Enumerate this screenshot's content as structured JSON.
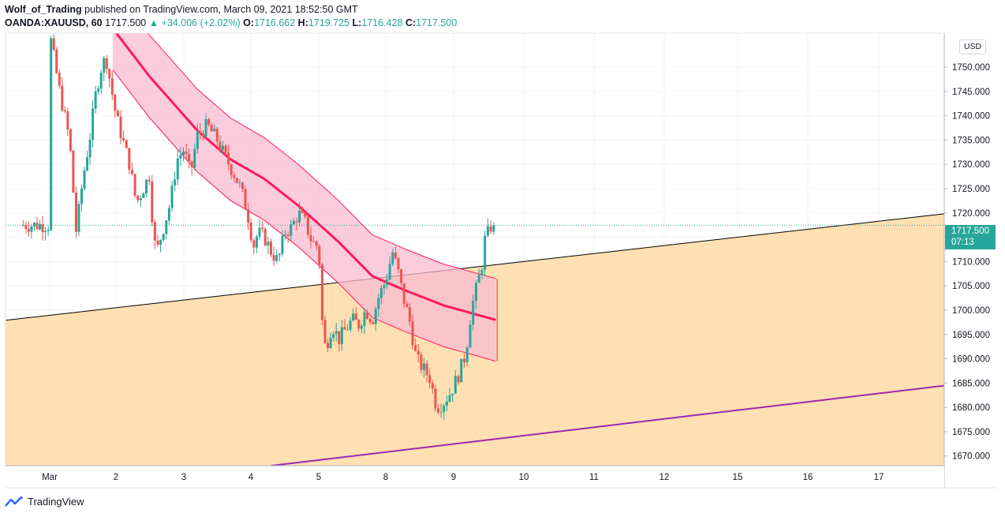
{
  "header": {
    "author": "Wolf_of_Trading",
    "published": "published on TradingView.com, March 09, 2021 18:52:50 GMT"
  },
  "legend": {
    "symbol": "OANDA:XAUUSD, 60",
    "last": "1717.500",
    "change": "▲ +34.006 (+2.02%)",
    "o_label": "O:",
    "o_value": "1716.662",
    "h_label": "H:",
    "h_value": "1719.725",
    "l_label": "L:",
    "l_value": "1716.428",
    "c_label": "C:",
    "c_value": "1717.500"
  },
  "currency": "USD",
  "price_tag": {
    "price": "1717.500",
    "countdown": "07:13"
  },
  "footer": {
    "brand": "TradingView"
  },
  "colors": {
    "up": "#26a69a",
    "down": "#ef5350",
    "channel_fill": "#ffe0b2",
    "band_fill": "#f8bbd0",
    "band_line": "#ff1a5e",
    "lower_line": "#9c27b0",
    "trend_line": "#000000"
  },
  "chart_data": {
    "type": "candlestick",
    "symbol": "OANDA:XAUUSD",
    "interval": "60",
    "x_ticks": [
      "Mar",
      "2",
      "3",
      "4",
      "5",
      "8",
      "9",
      "10",
      "11",
      "12",
      "15",
      "16",
      "17"
    ],
    "y_ticks": [
      "1670.000",
      "1675.000",
      "1680.000",
      "1685.000",
      "1690.000",
      "1695.000",
      "1700.000",
      "1705.000",
      "1710.000",
      "1715.000",
      "1720.000",
      "1725.000",
      "1730.000",
      "1735.000",
      "1740.000",
      "1745.000",
      "1750.000"
    ],
    "ylim": [
      1668,
      1757
    ],
    "last_price": 1717.5,
    "price_path": [
      [
        0,
        1757
      ],
      [
        0.15,
        1745
      ],
      [
        0.3,
        1735
      ],
      [
        0.4,
        1716
      ],
      [
        0.5,
        1727
      ],
      [
        0.6,
        1735
      ],
      [
        0.7,
        1745
      ],
      [
        0.78,
        1750
      ],
      [
        0.85,
        1752
      ],
      [
        0.95,
        1744
      ],
      [
        1.0,
        1740
      ],
      [
        1.1,
        1735
      ],
      [
        1.2,
        1730
      ],
      [
        1.3,
        1722
      ],
      [
        1.4,
        1725
      ],
      [
        1.5,
        1728
      ],
      [
        1.55,
        1715
      ],
      [
        1.6,
        1712
      ],
      [
        1.7,
        1717
      ],
      [
        1.8,
        1722
      ],
      [
        1.9,
        1731
      ],
      [
        2.0,
        1733
      ],
      [
        2.1,
        1728
      ],
      [
        2.2,
        1736
      ],
      [
        2.35,
        1738
      ],
      [
        2.5,
        1735
      ],
      [
        2.6,
        1732
      ],
      [
        2.75,
        1728
      ],
      [
        2.85,
        1725
      ],
      [
        2.95,
        1720
      ],
      [
        3.0,
        1716
      ],
      [
        3.05,
        1713
      ],
      [
        3.1,
        1716
      ],
      [
        3.2,
        1715
      ],
      [
        3.3,
        1712
      ],
      [
        3.4,
        1710
      ],
      [
        3.5,
        1716
      ],
      [
        3.6,
        1717
      ],
      [
        3.7,
        1720
      ],
      [
        3.8,
        1718
      ],
      [
        3.9,
        1714
      ],
      [
        4.0,
        1713
      ],
      [
        4.05,
        1698
      ],
      [
        4.1,
        1692
      ],
      [
        4.2,
        1697
      ],
      [
        4.3,
        1694
      ],
      [
        4.4,
        1696
      ],
      [
        4.5,
        1698
      ],
      [
        4.6,
        1697
      ],
      [
        4.7,
        1700
      ],
      [
        4.8,
        1698
      ],
      [
        4.9,
        1703
      ],
      [
        5.0,
        1706
      ],
      [
        5.1,
        1712
      ],
      [
        5.2,
        1707
      ],
      [
        5.25,
        1703
      ],
      [
        5.35,
        1698
      ],
      [
        5.45,
        1690
      ],
      [
        5.55,
        1688
      ],
      [
        5.65,
        1686
      ],
      [
        5.75,
        1680
      ],
      [
        5.85,
        1681
      ],
      [
        5.95,
        1683
      ],
      [
        6.05,
        1686
      ],
      [
        6.15,
        1690
      ],
      [
        6.2,
        1694
      ],
      [
        6.25,
        1700
      ],
      [
        6.35,
        1706
      ],
      [
        6.4,
        1709
      ],
      [
        6.45,
        1715
      ],
      [
        6.5,
        1716
      ],
      [
        6.55,
        1718
      ],
      [
        6.6,
        1717.5
      ]
    ],
    "annotations": {
      "upper_trendline": {
        "x": [
          -3.2,
          17.25
        ],
        "y": [
          1694,
          1727
        ]
      },
      "lower_trendline": {
        "x": [
          3.3,
          17.25
        ],
        "y": [
          1668,
          1692
        ]
      },
      "regression_band_center": [
        [
          0.95,
          1758
        ],
        [
          1.5,
          1748
        ],
        [
          2.2,
          1737
        ],
        [
          2.7,
          1731
        ],
        [
          3.2,
          1727
        ],
        [
          3.7,
          1721.5
        ],
        [
          4.3,
          1714
        ],
        [
          4.8,
          1707
        ],
        [
          5.3,
          1704
        ],
        [
          5.85,
          1701
        ],
        [
          6.6,
          1698
        ]
      ],
      "regression_band_width": 8.5,
      "band_end_x": 6.62
    }
  }
}
